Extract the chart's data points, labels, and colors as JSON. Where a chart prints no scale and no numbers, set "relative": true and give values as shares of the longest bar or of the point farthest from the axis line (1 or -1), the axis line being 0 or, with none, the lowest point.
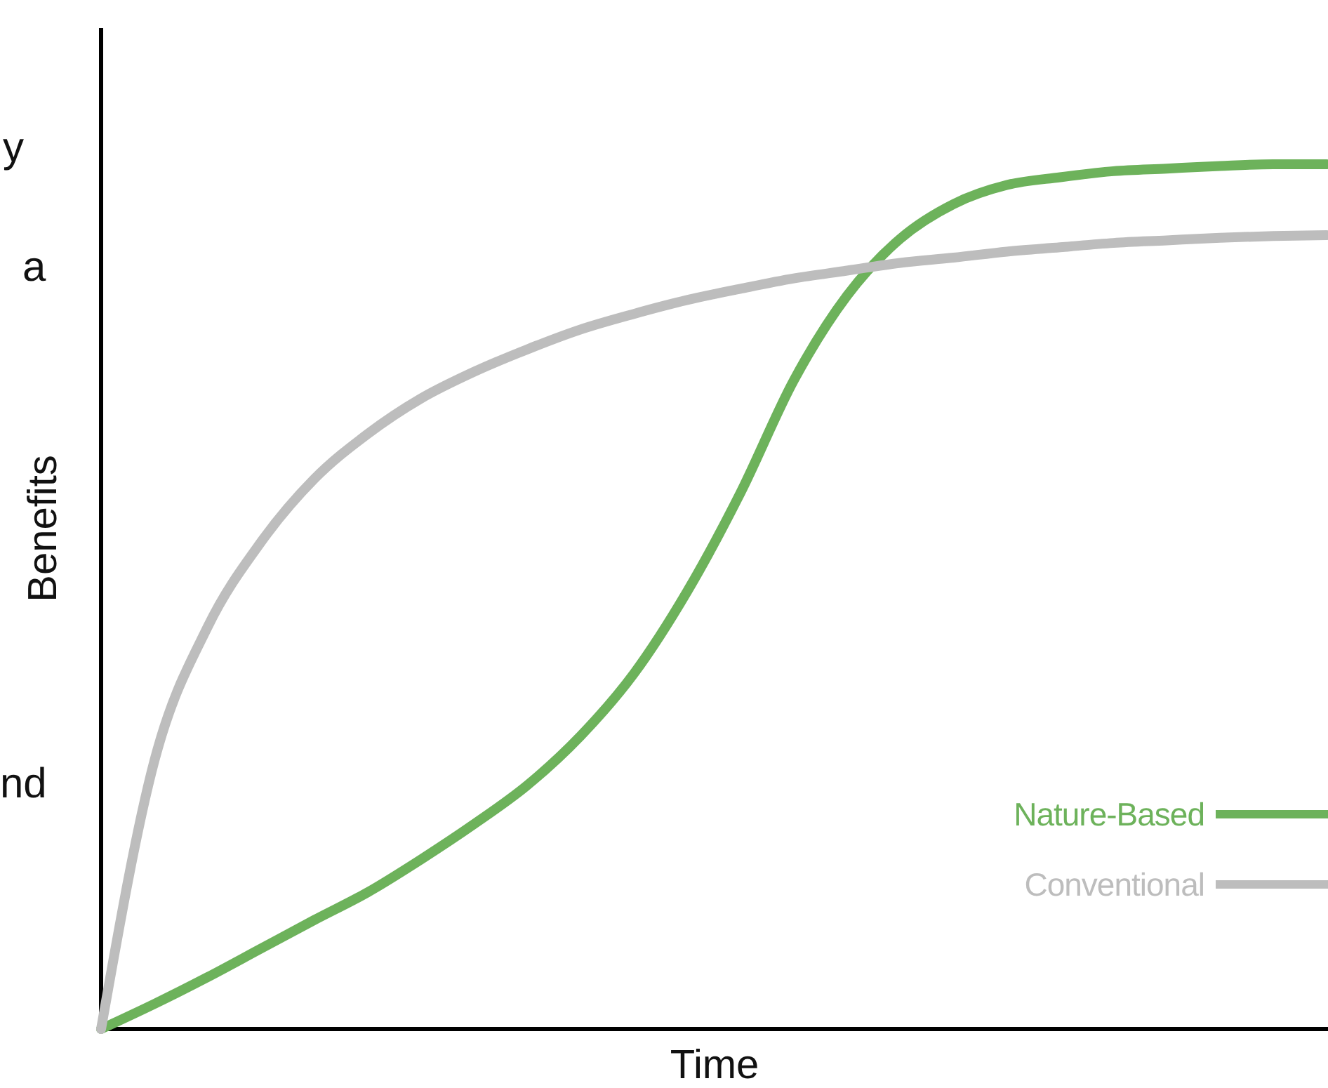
{
  "chart_data": {
    "type": "line",
    "relative": true,
    "xlabel": "Time",
    "ylabel": "Benefits",
    "annotations": [
      "y",
      "a",
      "nd"
    ],
    "categories": [
      null,
      null,
      null,
      null,
      null,
      null,
      null,
      null,
      null,
      null,
      null,
      null,
      null,
      null,
      null,
      null,
      null,
      null,
      null,
      null,
      null,
      null,
      null,
      null
    ],
    "series": [
      {
        "name": "Nature-Based",
        "color": "#6db25b",
        "values": [
          0,
          0.029,
          0.06,
          0.093,
          0.126,
          0.158,
          0.196,
          0.237,
          0.282,
          0.339,
          0.411,
          0.506,
          0.62,
          0.75,
          0.848,
          0.914,
          0.954,
          0.976,
          0.985,
          0.992,
          0.995,
          0.998,
          1,
          1
        ]
      },
      {
        "name": "Conventional",
        "color": "#bdbdbd",
        "values": [
          0,
          0.31,
          0.465,
          0.563,
          0.636,
          0.688,
          0.729,
          0.76,
          0.786,
          0.809,
          0.827,
          0.843,
          0.856,
          0.868,
          0.877,
          0.886,
          0.892,
          0.899,
          0.904,
          0.909,
          0.912,
          0.915,
          0.917,
          0.918
        ]
      }
    ],
    "legend": "bottom right",
    "marker": "none",
    "line_style": "solid"
  }
}
